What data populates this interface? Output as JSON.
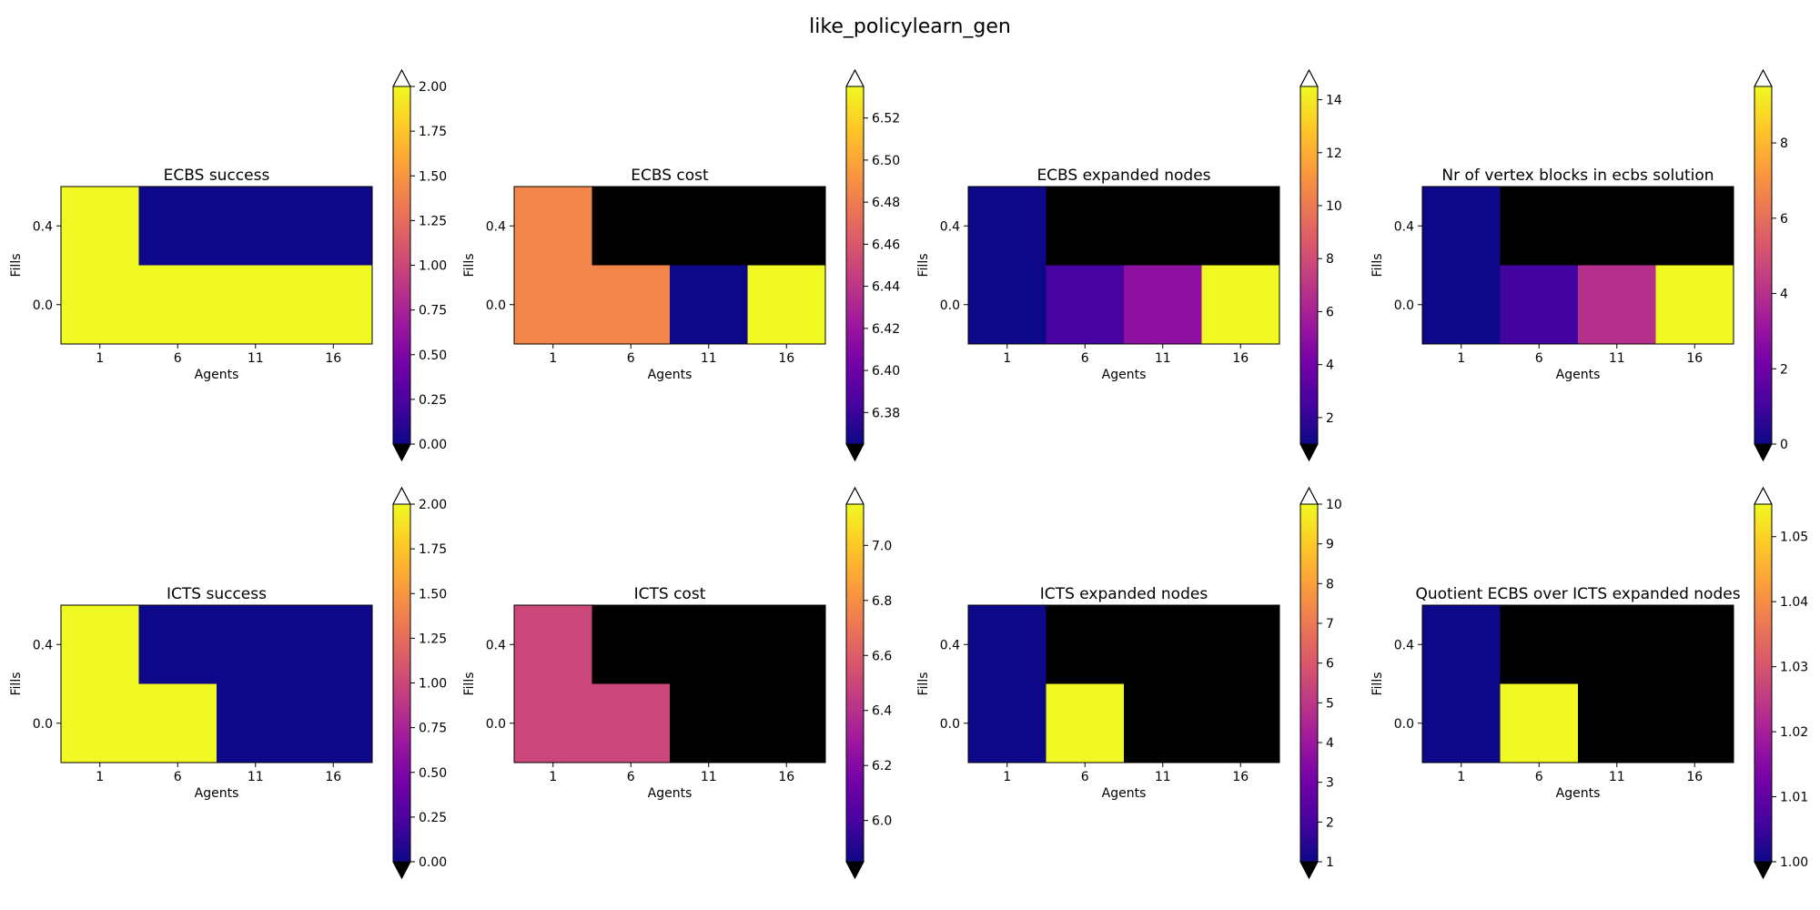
{
  "figure": {
    "title": "like_policylearn_gen"
  },
  "colors": {
    "plasma_stops": [
      "#0d0887",
      "#46039f",
      "#7201a8",
      "#9c179e",
      "#bd3786",
      "#d8576b",
      "#ed7953",
      "#fb9f3a",
      "#fdca26",
      "#f0f921"
    ],
    "nan": "#000000",
    "background": "#ffffff"
  },
  "chart_data": [
    {
      "type": "heatmap",
      "title": "ECBS success",
      "xlabel": "Agents",
      "ylabel": "Fills",
      "x_ticks": [
        "1",
        "6",
        "11",
        "16"
      ],
      "y_ticks": [
        "0.0",
        "0.4"
      ],
      "rows": [
        {
          "fill": "0.4",
          "values": [
            2,
            0,
            0,
            0
          ]
        },
        {
          "fill": "0.0",
          "values": [
            2,
            2,
            2,
            2
          ]
        }
      ],
      "colorbar": {
        "vmin": 0,
        "vmax": 2,
        "ticks": [
          "0.00",
          "0.25",
          "0.50",
          "0.75",
          "1.00",
          "1.25",
          "1.50",
          "1.75",
          "2.00"
        ],
        "extend": "both"
      }
    },
    {
      "type": "heatmap",
      "title": "ECBS cost",
      "xlabel": "Agents",
      "ylabel": "Fills",
      "x_ticks": [
        "1",
        "6",
        "11",
        "16"
      ],
      "y_ticks": [
        "0.0",
        "0.4"
      ],
      "rows": [
        {
          "fill": "0.4",
          "values": [
            6.485,
            null,
            null,
            null
          ]
        },
        {
          "fill": "0.0",
          "values": [
            6.485,
            6.485,
            6.365,
            6.535
          ]
        }
      ],
      "colorbar": {
        "vmin": 6.365,
        "vmax": 6.535,
        "ticks": [
          "6.38",
          "6.40",
          "6.42",
          "6.44",
          "6.46",
          "6.48",
          "6.50",
          "6.52"
        ],
        "extend": "both"
      }
    },
    {
      "type": "heatmap",
      "title": "ECBS expanded nodes",
      "xlabel": "Agents",
      "ylabel": "Fills",
      "x_ticks": [
        "1",
        "6",
        "11",
        "16"
      ],
      "y_ticks": [
        "0.0",
        "0.4"
      ],
      "rows": [
        {
          "fill": "0.4",
          "values": [
            1,
            null,
            null,
            null
          ]
        },
        {
          "fill": "0.0",
          "values": [
            1,
            2.5,
            5,
            14.5
          ]
        }
      ],
      "colorbar": {
        "vmin": 1,
        "vmax": 14.5,
        "ticks": [
          "2",
          "4",
          "6",
          "8",
          "10",
          "12",
          "14"
        ],
        "extend": "both"
      }
    },
    {
      "type": "heatmap",
      "title": "Nr of vertex blocks in ecbs solution",
      "xlabel": "Agents",
      "ylabel": "Fills",
      "x_ticks": [
        "1",
        "6",
        "11",
        "16"
      ],
      "y_ticks": [
        "0.0",
        "0.4"
      ],
      "rows": [
        {
          "fill": "0.4",
          "values": [
            0,
            null,
            null,
            null
          ]
        },
        {
          "fill": "0.0",
          "values": [
            0,
            1,
            4,
            9.5
          ]
        }
      ],
      "colorbar": {
        "vmin": 0,
        "vmax": 9.5,
        "ticks": [
          "0",
          "2",
          "4",
          "6",
          "8"
        ],
        "extend": "both"
      }
    },
    {
      "type": "heatmap",
      "title": "ICTS success",
      "xlabel": "Agents",
      "ylabel": "Fills",
      "x_ticks": [
        "1",
        "6",
        "11",
        "16"
      ],
      "y_ticks": [
        "0.0",
        "0.4"
      ],
      "rows": [
        {
          "fill": "0.4",
          "values": [
            2,
            0,
            0,
            0
          ]
        },
        {
          "fill": "0.0",
          "values": [
            2,
            2,
            0,
            0
          ]
        }
      ],
      "colorbar": {
        "vmin": 0,
        "vmax": 2,
        "ticks": [
          "0.00",
          "0.25",
          "0.50",
          "0.75",
          "1.00",
          "1.25",
          "1.50",
          "1.75",
          "2.00"
        ],
        "extend": "both"
      }
    },
    {
      "type": "heatmap",
      "title": "ICTS cost",
      "xlabel": "Agents",
      "ylabel": "Fills",
      "x_ticks": [
        "1",
        "6",
        "11",
        "16"
      ],
      "y_ticks": [
        "0.0",
        "0.4"
      ],
      "rows": [
        {
          "fill": "0.4",
          "values": [
            6.5,
            null,
            null,
            null
          ]
        },
        {
          "fill": "0.0",
          "values": [
            6.5,
            6.5,
            null,
            null
          ]
        }
      ],
      "colorbar": {
        "vmin": 5.85,
        "vmax": 7.15,
        "ticks": [
          "6.0",
          "6.2",
          "6.4",
          "6.6",
          "6.8",
          "7.0"
        ],
        "extend": "both"
      }
    },
    {
      "type": "heatmap",
      "title": "ICTS expanded nodes",
      "xlabel": "Agents",
      "ylabel": "Fills",
      "x_ticks": [
        "1",
        "6",
        "11",
        "16"
      ],
      "y_ticks": [
        "0.0",
        "0.4"
      ],
      "rows": [
        {
          "fill": "0.4",
          "values": [
            1,
            null,
            null,
            null
          ]
        },
        {
          "fill": "0.0",
          "values": [
            1,
            10,
            null,
            null
          ]
        }
      ],
      "colorbar": {
        "vmin": 1,
        "vmax": 10,
        "ticks": [
          "1",
          "2",
          "3",
          "4",
          "5",
          "6",
          "7",
          "8",
          "9",
          "10"
        ],
        "extend": "both"
      }
    },
    {
      "type": "heatmap",
      "title": "Quotient ECBS over ICTS expanded nodes",
      "xlabel": "Agents",
      "ylabel": "Fills",
      "x_ticks": [
        "1",
        "6",
        "11",
        "16"
      ],
      "y_ticks": [
        "0.0",
        "0.4"
      ],
      "rows": [
        {
          "fill": "0.4",
          "values": [
            1.0,
            null,
            null,
            null
          ]
        },
        {
          "fill": "0.0",
          "values": [
            1.0,
            1.055,
            null,
            null
          ]
        }
      ],
      "colorbar": {
        "vmin": 1.0,
        "vmax": 1.055,
        "ticks": [
          "1.00",
          "1.01",
          "1.02",
          "1.03",
          "1.04",
          "1.05"
        ],
        "extend": "both"
      }
    }
  ]
}
